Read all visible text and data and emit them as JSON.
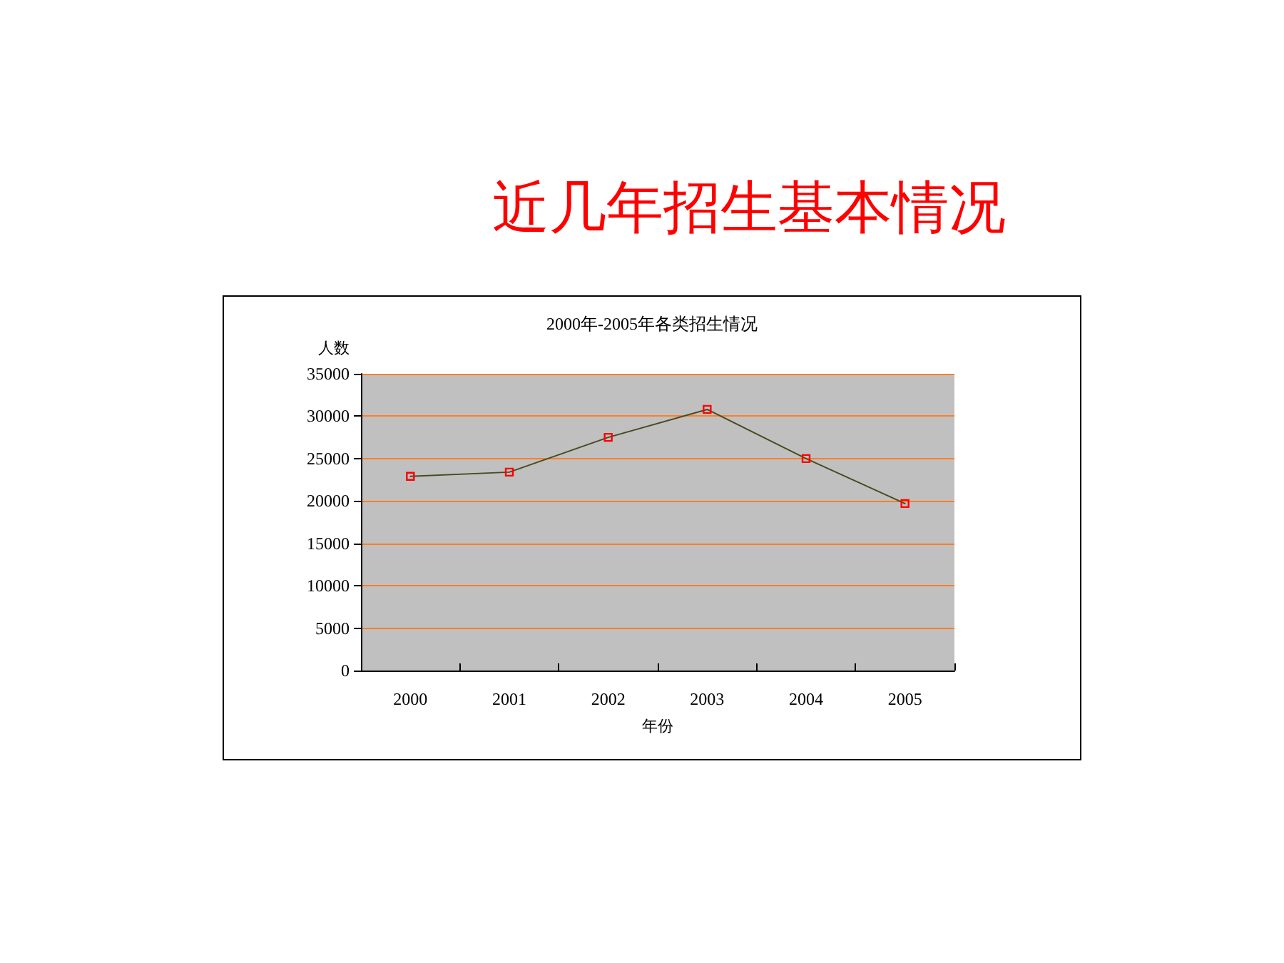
{
  "chart_data": {
    "type": "line",
    "title": "近几年招生基本情况",
    "subtitle": "2000年-2005年各类招生情况",
    "xlabel": "年份",
    "ylabel": "人数",
    "categories": [
      "2000",
      "2001",
      "2002",
      "2003",
      "2004",
      "2005"
    ],
    "series": [
      {
        "color": "#4a4a22",
        "colors": [
          "#ff0000",
          "#ff0000",
          "#ff0000",
          "#ff0000",
          "#ff0000",
          "#ff0000"
        ],
        "values": [
          22900,
          23400,
          27500,
          30800,
          25000,
          19700
        ]
      }
    ],
    "ylim": [
      0,
      35000
    ],
    "yticks": [
      0,
      5000,
      10000,
      15000,
      20000,
      25000,
      30000,
      35000
    ],
    "grid": "y",
    "marker": "square",
    "line_style": "solid"
  }
}
